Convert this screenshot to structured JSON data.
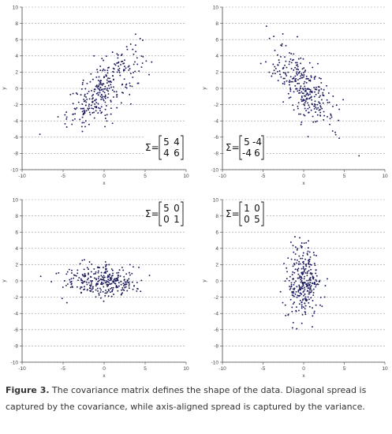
{
  "chart_data": [
    {
      "type": "scatter",
      "panel": "top-left",
      "xlabel": "x",
      "ylabel": "y",
      "xlim": [
        -10,
        10
      ],
      "ylim": [
        -10,
        10
      ],
      "xticks": [
        "-10",
        "-5",
        "0",
        "5",
        "10"
      ],
      "yticks": [
        "10",
        "8",
        "6",
        "4",
        "2",
        "0",
        "-2",
        "-4",
        "-6",
        "-8",
        "-10"
      ],
      "grid": "horizontal-dashed",
      "annotation": {
        "prefix": "Σ=",
        "matrix": [
          [
            "5",
            "4"
          ],
          [
            "4",
            "6"
          ]
        ],
        "position": "bottom-right"
      },
      "distribution": {
        "mean": [
          0,
          0
        ],
        "covariance": [
          [
            5,
            4
          ],
          [
            4,
            6
          ]
        ],
        "n_points": 300
      },
      "point_color": "#1a1a5e"
    },
    {
      "type": "scatter",
      "panel": "top-right",
      "xlabel": "x",
      "ylabel": "y",
      "xlim": [
        -10,
        10
      ],
      "ylim": [
        -10,
        10
      ],
      "xticks": [
        "-10",
        "-5",
        "0",
        "5",
        "10"
      ],
      "yticks": [
        "10",
        "8",
        "6",
        "4",
        "2",
        "0",
        "-2",
        "-4",
        "-6",
        "-8",
        "-10"
      ],
      "grid": "horizontal-dashed",
      "annotation": {
        "prefix": "Σ=",
        "matrix": [
          [
            "5",
            "-4"
          ],
          [
            "-4",
            "6"
          ]
        ],
        "position": "bottom-left"
      },
      "distribution": {
        "mean": [
          0,
          0
        ],
        "covariance": [
          [
            5,
            -4
          ],
          [
            -4,
            6
          ]
        ],
        "n_points": 300
      },
      "point_color": "#1a1a5e"
    },
    {
      "type": "scatter",
      "panel": "bottom-left",
      "xlabel": "x",
      "ylabel": "y",
      "xlim": [
        -10,
        10
      ],
      "ylim": [
        -10,
        10
      ],
      "xticks": [
        "-10",
        "-5",
        "0",
        "5",
        "10"
      ],
      "yticks": [
        "10",
        "8",
        "6",
        "4",
        "2",
        "0",
        "-2",
        "-4",
        "-6",
        "-8",
        "-10"
      ],
      "grid": "horizontal-dashed",
      "annotation": {
        "prefix": "Σ=",
        "matrix": [
          [
            "5",
            "0"
          ],
          [
            "0",
            "1"
          ]
        ],
        "position": "top-right"
      },
      "distribution": {
        "mean": [
          0,
          0
        ],
        "covariance": [
          [
            5,
            0
          ],
          [
            0,
            1
          ]
        ],
        "n_points": 300
      },
      "point_color": "#1a1a5e"
    },
    {
      "type": "scatter",
      "panel": "bottom-right",
      "xlabel": "x",
      "ylabel": "y",
      "xlim": [
        -10,
        10
      ],
      "ylim": [
        -10,
        10
      ],
      "xticks": [
        "-10",
        "-5",
        "0",
        "5",
        "10"
      ],
      "yticks": [
        "10",
        "8",
        "6",
        "4",
        "2",
        "0",
        "-2",
        "-4",
        "-6",
        "-8",
        "-10"
      ],
      "grid": "horizontal-dashed",
      "annotation": {
        "prefix": "Σ=",
        "matrix": [
          [
            "1",
            "0"
          ],
          [
            "0",
            "5"
          ]
        ],
        "position": "top-left"
      },
      "distribution": {
        "mean": [
          0,
          0
        ],
        "covariance": [
          [
            1,
            0
          ],
          [
            0,
            5
          ]
        ],
        "n_points": 300
      },
      "point_color": "#1a1a5e"
    }
  ],
  "caption": {
    "label": "Figure 3.",
    "text": " The covariance matrix defines the shape of the data. Diagonal spread is captured by the covariance, while axis-aligned spread is captured by the variance."
  }
}
